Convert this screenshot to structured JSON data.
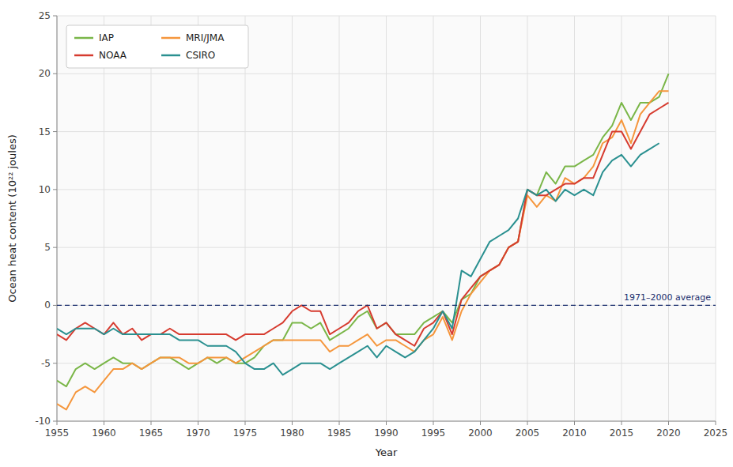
{
  "chart_data": {
    "type": "line",
    "xlabel": "Year",
    "ylabel": "Ocean heat content (10²² joules)",
    "xlim": [
      1955,
      2025
    ],
    "ylim": [
      -10,
      25
    ],
    "xticks": [
      1955,
      1960,
      1965,
      1970,
      1975,
      1980,
      1985,
      1990,
      1995,
      2000,
      2005,
      2010,
      2015,
      2020,
      2025
    ],
    "yticks": [
      -10,
      -5,
      0,
      5,
      10,
      15,
      20,
      25
    ],
    "grid": true,
    "legend": "upper left",
    "annotations": [
      {
        "text": "1971–2000 average",
        "y": 0,
        "color": "#1a2e6e",
        "line_style": "dashed"
      }
    ],
    "x": [
      1955,
      1956,
      1957,
      1958,
      1959,
      1960,
      1961,
      1962,
      1963,
      1964,
      1965,
      1966,
      1967,
      1968,
      1969,
      1970,
      1971,
      1972,
      1973,
      1974,
      1975,
      1976,
      1977,
      1978,
      1979,
      1980,
      1981,
      1982,
      1983,
      1984,
      1985,
      1986,
      1987,
      1988,
      1989,
      1990,
      1991,
      1992,
      1993,
      1994,
      1995,
      1996,
      1997,
      1998,
      1999,
      2000,
      2001,
      2002,
      2003,
      2004,
      2005,
      2006,
      2007,
      2008,
      2009,
      2010,
      2011,
      2012,
      2013,
      2014,
      2015,
      2016,
      2017,
      2018,
      2019,
      2020
    ],
    "series": [
      {
        "name": "IAP",
        "color": "#7ab648",
        "values": [
          -6.5,
          -7.0,
          -5.5,
          -5.0,
          -5.5,
          -5.0,
          -4.5,
          -5.0,
          -5.0,
          -5.5,
          -5.0,
          -4.5,
          -4.5,
          -5.0,
          -5.5,
          -5.0,
          -4.5,
          -5.0,
          -4.5,
          -5.0,
          -5.0,
          -4.5,
          -3.5,
          -3.0,
          -3.0,
          -1.5,
          -1.5,
          -2.0,
          -1.5,
          -3.0,
          -2.5,
          -2.0,
          -1.0,
          -0.5,
          -2.0,
          -1.5,
          -2.5,
          -2.5,
          -2.5,
          -1.5,
          -1.0,
          -0.5,
          -1.5,
          0.5,
          1.0,
          2.5,
          3.0,
          3.5,
          5.0,
          5.5,
          10.0,
          9.5,
          11.5,
          10.5,
          12.0,
          12.0,
          12.5,
          13.0,
          14.5,
          15.5,
          17.5,
          16.0,
          17.5,
          17.5,
          18.0,
          20.0
        ]
      },
      {
        "name": "MRI/JMA",
        "color": "#f5963c",
        "values": [
          -8.5,
          -9.0,
          -7.5,
          -7.0,
          -7.5,
          -6.5,
          -5.5,
          -5.5,
          -5.0,
          -5.5,
          -5.0,
          -4.5,
          -4.5,
          -4.5,
          -5.0,
          -5.0,
          -4.5,
          -4.5,
          -4.5,
          -5.0,
          -4.5,
          -4.0,
          -3.5,
          -3.0,
          -3.0,
          -3.0,
          -3.0,
          -3.0,
          -3.0,
          -4.0,
          -3.5,
          -3.5,
          -3.0,
          -2.5,
          -3.5,
          -3.0,
          -3.0,
          -3.5,
          -4.0,
          -3.0,
          -2.5,
          -1.0,
          -3.0,
          -0.5,
          1.0,
          2.0,
          3.0,
          3.5,
          5.0,
          5.5,
          9.5,
          8.5,
          9.5,
          9.0,
          11.0,
          10.5,
          11.0,
          12.0,
          14.0,
          14.5,
          16.0,
          14.0,
          16.5,
          17.5,
          18.5,
          18.5
        ]
      },
      {
        "name": "NOAA",
        "color": "#d63b2f",
        "values": [
          -2.5,
          -3.0,
          -2.0,
          -1.5,
          -2.0,
          -2.5,
          -1.5,
          -2.5,
          -2.0,
          -3.0,
          -2.5,
          -2.5,
          -2.0,
          -2.5,
          -2.5,
          -2.5,
          -2.5,
          -2.5,
          -2.5,
          -3.0,
          -2.5,
          -2.5,
          -2.5,
          -2.0,
          -1.5,
          -0.5,
          0.0,
          -0.5,
          -0.5,
          -2.5,
          -2.0,
          -1.5,
          -0.5,
          0.0,
          -2.0,
          -1.5,
          -2.5,
          -3.0,
          -3.5,
          -2.0,
          -1.5,
          -0.5,
          -2.5,
          0.5,
          1.5,
          2.5,
          3.0,
          3.5,
          5.0,
          5.5,
          10.0,
          9.5,
          9.5,
          10.0,
          10.5,
          10.5,
          11.0,
          11.0,
          13.0,
          15.0,
          15.0,
          13.5,
          15.0,
          16.5,
          17.0,
          17.5
        ]
      },
      {
        "name": "CSIRO",
        "color": "#2a9090",
        "values": [
          -2.0,
          -2.5,
          -2.0,
          -2.0,
          -2.0,
          -2.5,
          -2.0,
          -2.5,
          -2.5,
          -2.5,
          -2.5,
          -2.5,
          -2.5,
          -3.0,
          -3.0,
          -3.0,
          -3.5,
          -3.5,
          -3.5,
          -4.0,
          -5.0,
          -5.5,
          -5.5,
          -5.0,
          -6.0,
          -5.5,
          -5.0,
          -5.0,
          -5.0,
          -5.5,
          -5.0,
          -4.5,
          -4.0,
          -3.5,
          -4.5,
          -3.5,
          -4.0,
          -4.5,
          -4.0,
          -3.0,
          -2.0,
          -0.5,
          -2.0,
          3.0,
          2.5,
          4.0,
          5.5,
          6.0,
          6.5,
          7.5,
          10.0,
          9.5,
          10.0,
          9.0,
          10.0,
          9.5,
          10.0,
          9.5,
          11.5,
          12.5,
          13.0,
          12.0,
          13.0,
          13.5,
          14.0,
          null
        ]
      }
    ]
  }
}
